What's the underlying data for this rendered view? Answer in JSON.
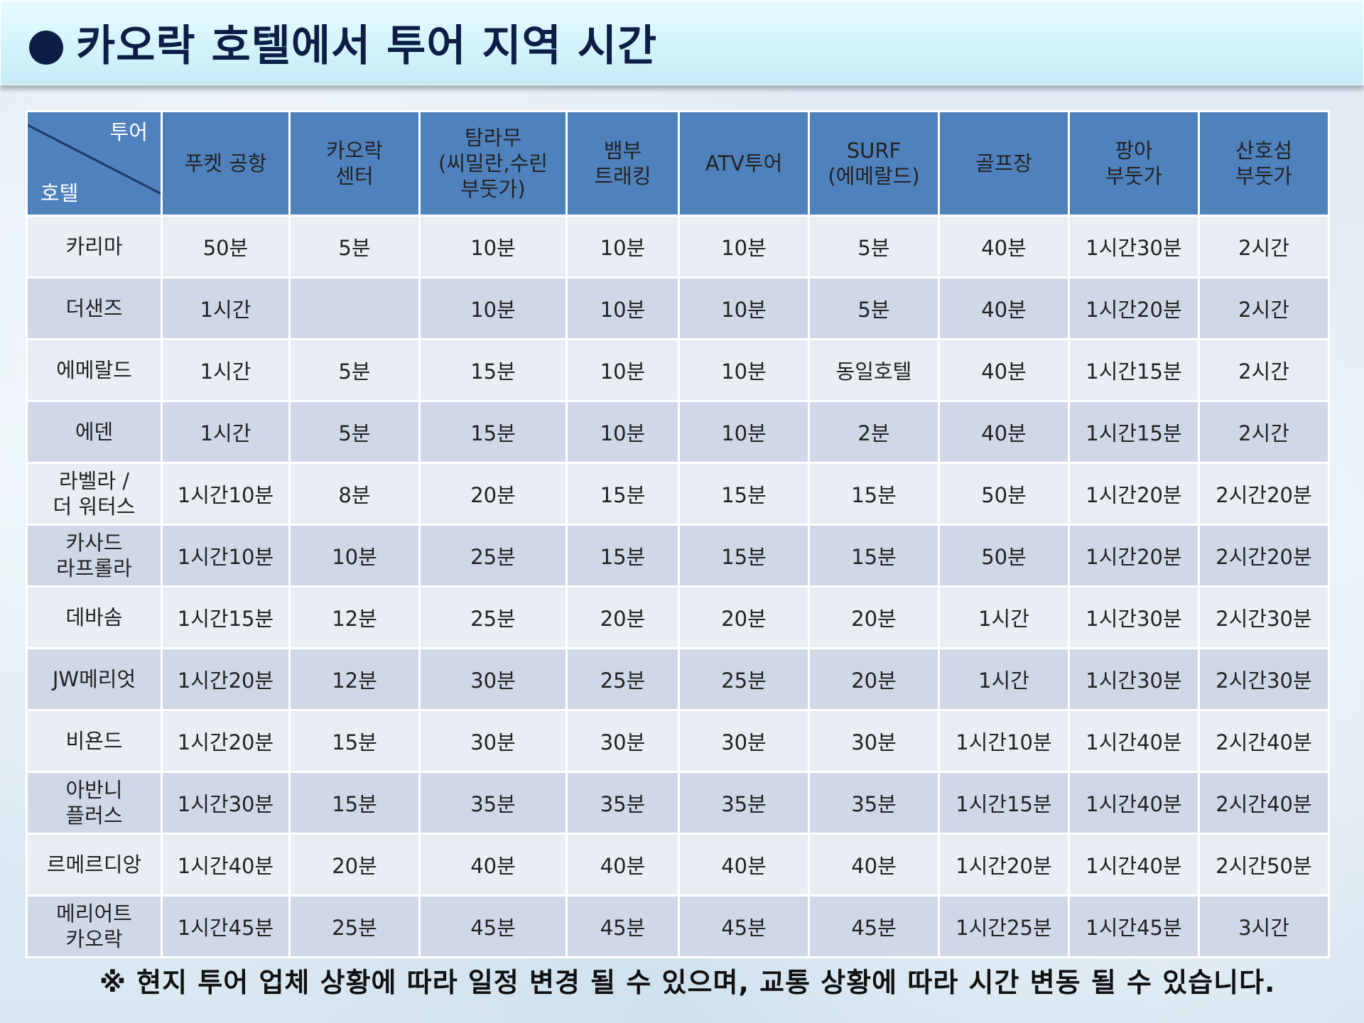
{
  "title": "카오락 호텔에서 투어 지역 시간",
  "corner": {
    "top": "투어",
    "bottom": "호텔"
  },
  "columns": [
    "푸켓 공항",
    "카오락\n센터",
    "탐라무\n(씨밀란,수린\n부둣가)",
    "뱀부\n트래킹",
    "ATV투어",
    "SURF\n(에메랄드)",
    "골프장",
    "팡아\n부둣가",
    "산호섬\n부둣가"
  ],
  "rows": [
    {
      "hotel": "카리마",
      "values": [
        "50분",
        "5분",
        "10분",
        "10분",
        "10분",
        "5분",
        "40분",
        "1시간30분",
        "2시간"
      ]
    },
    {
      "hotel": "더샌즈",
      "values": [
        "1시간",
        "",
        "10분",
        "10분",
        "10분",
        "5분",
        "40분",
        "1시간20분",
        "2시간"
      ]
    },
    {
      "hotel": "에메랄드",
      "values": [
        "1시간",
        "5분",
        "15분",
        "10분",
        "10분",
        "동일호텔",
        "40분",
        "1시간15분",
        "2시간"
      ]
    },
    {
      "hotel": "에덴",
      "values": [
        "1시간",
        "5분",
        "15분",
        "10분",
        "10분",
        "2분",
        "40분",
        "1시간15분",
        "2시간"
      ]
    },
    {
      "hotel": "라벨라 /\n더 워터스",
      "values": [
        "1시간10분",
        "8분",
        "20분",
        "15분",
        "15분",
        "15분",
        "50분",
        "1시간20분",
        "2시간20분"
      ]
    },
    {
      "hotel": "카사드\n라프롤라",
      "values": [
        "1시간10분",
        "10분",
        "25분",
        "15분",
        "15분",
        "15분",
        "50분",
        "1시간20분",
        "2시간20분"
      ]
    },
    {
      "hotel": "데바솜",
      "values": [
        "1시간15분",
        "12분",
        "25분",
        "20분",
        "20분",
        "20분",
        "1시간",
        "1시간30분",
        "2시간30분"
      ]
    },
    {
      "hotel": "JW메리엇",
      "values": [
        "1시간20분",
        "12분",
        "30분",
        "25분",
        "25분",
        "20분",
        "1시간",
        "1시간30분",
        "2시간30분"
      ]
    },
    {
      "hotel": "비욘드",
      "values": [
        "1시간20분",
        "15분",
        "30분",
        "30분",
        "30분",
        "30분",
        "1시간10분",
        "1시간40분",
        "2시간40분"
      ]
    },
    {
      "hotel": "아반니\n플러스",
      "values": [
        "1시간30분",
        "15분",
        "35분",
        "35분",
        "35분",
        "35분",
        "1시간15분",
        "1시간40분",
        "2시간40분"
      ]
    },
    {
      "hotel": "르메르디앙",
      "values": [
        "1시간40분",
        "20분",
        "40분",
        "40분",
        "40분",
        "40분",
        "1시간20분",
        "1시간40분",
        "2시간50분"
      ]
    },
    {
      "hotel": "메리어트\n카오락",
      "values": [
        "1시간45분",
        "25분",
        "45분",
        "45분",
        "45분",
        "45분",
        "1시간25분",
        "1시간45분",
        "3시간"
      ]
    }
  ],
  "footnote": "※ 현지 투어 업체 상황에 따라 일정 변경 될 수 있으며, 교통 상황에 따라 시간 변동 될 수 있습니다."
}
